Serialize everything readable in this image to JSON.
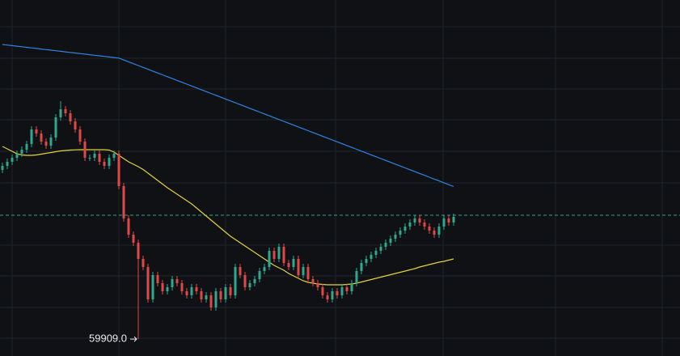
{
  "chart_data": {
    "type": "candlestick",
    "ylim": [
      59700,
      64100
    ],
    "up_color": "#2ea88e",
    "down_color": "#e04848",
    "price_line": 61440,
    "price_line_color": "#2ea88e",
    "low_annotation": "59909.0",
    "open": [
      62000,
      62050,
      62100,
      62150,
      62200,
      62250,
      62320,
      62500,
      62450,
      62350,
      62300,
      62400,
      62650,
      62750,
      62700,
      62600,
      62500,
      62350,
      62150,
      62150,
      62200,
      62100,
      62050,
      62150,
      62200,
      61800,
      61400,
      61200,
      61100,
      60900,
      60800,
      60400,
      60700,
      60600,
      60500,
      60550,
      60650,
      60600,
      60500,
      60450,
      60550,
      60500,
      60400,
      60450,
      60300,
      60500,
      60400,
      60550,
      60450,
      60800,
      60700,
      60550,
      60600,
      60650,
      60750,
      60800,
      61000,
      60900,
      61050,
      60850,
      60800,
      60900,
      60700,
      60800,
      60650,
      60600,
      60550,
      60450,
      60400,
      60500,
      60450,
      60550,
      60500,
      60600,
      60750,
      60850,
      60900,
      60950,
      61000,
      61050,
      61100,
      61150,
      61200,
      61250,
      61300,
      61350,
      61400,
      61350,
      61300,
      61250,
      61200,
      61300,
      61400,
      61350
    ],
    "high": [
      62090,
      62140,
      62190,
      62240,
      62290,
      62360,
      62540,
      62540,
      62490,
      62390,
      62440,
      62690,
      62850,
      62790,
      62740,
      62640,
      62540,
      62390,
      62190,
      62240,
      62240,
      62140,
      62190,
      62240,
      62240,
      61840,
      61440,
      61240,
      61140,
      60940,
      60840,
      60740,
      60740,
      60640,
      60590,
      60690,
      60690,
      60640,
      60540,
      60590,
      60590,
      60540,
      60490,
      60490,
      60540,
      60540,
      60590,
      60590,
      60840,
      60840,
      60740,
      60640,
      60690,
      60790,
      60840,
      61040,
      61040,
      61090,
      61090,
      60890,
      60940,
      60940,
      60840,
      60840,
      60690,
      60640,
      60590,
      60490,
      60540,
      60540,
      60590,
      60590,
      60640,
      60790,
      60890,
      60940,
      60990,
      61040,
      61090,
      61140,
      61190,
      61240,
      61290,
      61340,
      61390,
      61440,
      61440,
      61390,
      61340,
      61290,
      61340,
      61440,
      61440,
      61460
    ],
    "low": [
      61960,
      62010,
      62060,
      62110,
      62160,
      62210,
      62280,
      62410,
      62310,
      62260,
      62260,
      62360,
      62610,
      62660,
      62560,
      62460,
      62310,
      62110,
      62110,
      62110,
      62060,
      62010,
      62010,
      62110,
      61760,
      61360,
      61160,
      61060,
      59909,
      60760,
      60360,
      60360,
      60560,
      60460,
      60460,
      60510,
      60560,
      60460,
      60410,
      60410,
      60460,
      60360,
      60360,
      60260,
      60260,
      60360,
      60360,
      60410,
      60410,
      60660,
      60510,
      60510,
      60560,
      60610,
      60710,
      60760,
      60860,
      60860,
      60810,
      60760,
      60760,
      60660,
      60660,
      60610,
      60560,
      60510,
      60410,
      60360,
      60360,
      60410,
      60410,
      60460,
      60460,
      60560,
      60710,
      60810,
      60860,
      60910,
      60960,
      61010,
      61060,
      61110,
      61160,
      61210,
      61260,
      61310,
      61310,
      61260,
      61210,
      61160,
      61160,
      61260,
      61310,
      61310
    ],
    "close": [
      62050,
      62100,
      62150,
      62200,
      62250,
      62320,
      62500,
      62450,
      62350,
      62300,
      62400,
      62650,
      62750,
      62700,
      62600,
      62500,
      62350,
      62150,
      62150,
      62200,
      62100,
      62050,
      62150,
      62200,
      61800,
      61400,
      61200,
      61100,
      60900,
      60800,
      60400,
      60700,
      60600,
      60500,
      60550,
      60650,
      60600,
      60500,
      60450,
      60550,
      60500,
      60400,
      60450,
      60300,
      60500,
      60400,
      60550,
      60450,
      60800,
      60700,
      60550,
      60600,
      60650,
      60750,
      60800,
      61000,
      60900,
      61050,
      60850,
      60800,
      60900,
      60700,
      60800,
      60650,
      60600,
      60550,
      60450,
      60400,
      60500,
      60450,
      60550,
      60500,
      60600,
      60750,
      60850,
      60900,
      60950,
      61000,
      61050,
      61100,
      61150,
      61200,
      61250,
      61300,
      61350,
      61400,
      61350,
      61300,
      61250,
      61200,
      61300,
      61400,
      61350,
      61420
    ],
    "series": [
      {
        "color": "#2d84e6",
        "values": [
          63550,
          63543,
          63536,
          63529,
          63522,
          63515,
          63508,
          63501,
          63494,
          63487,
          63480,
          63473,
          63466,
          63459,
          63452,
          63445,
          63438,
          63431,
          63424,
          63417,
          63410,
          63403,
          63396,
          63389,
          63382,
          63359,
          63336,
          63313,
          63290,
          63267,
          63244,
          63221,
          63198,
          63175,
          63152,
          63129,
          63106,
          63083,
          63060,
          63037,
          63014,
          62991,
          62968,
          62945,
          62922,
          62899,
          62876,
          62853,
          62830,
          62807,
          62784,
          62761,
          62738,
          62715,
          62692,
          62669,
          62646,
          62623,
          62600,
          62577,
          62554,
          62531,
          62508,
          62485,
          62462,
          62439,
          62416,
          62393,
          62370,
          62347,
          62324,
          62301,
          62278,
          62255,
          62232,
          62209,
          62186,
          62163,
          62140,
          62117,
          62094,
          62071,
          62048,
          62025,
          62002,
          61979,
          61956,
          61933,
          61910,
          61887,
          61864,
          61841,
          61818,
          61795
        ]
      },
      {
        "color": "#e3d23c",
        "values": [
          62290,
          62260,
          62230,
          62200,
          62185,
          62180,
          62180,
          62185,
          62195,
          62205,
          62215,
          62225,
          62235,
          62240,
          62245,
          62248,
          62250,
          62250,
          62250,
          62250,
          62250,
          62250,
          62245,
          62220,
          62180,
          62140,
          62100,
          62070,
          62040,
          62005,
          61960,
          61915,
          61870,
          61825,
          61780,
          61740,
          61700,
          61660,
          61620,
          61580,
          61530,
          61480,
          61430,
          61380,
          61330,
          61280,
          61230,
          61180,
          61140,
          61100,
          61060,
          61020,
          60980,
          60940,
          60900,
          60860,
          60820,
          60790,
          60760,
          60720,
          60690,
          60660,
          60630,
          60610,
          60600,
          60590,
          60585,
          60580,
          60580,
          60580,
          60580,
          60585,
          60590,
          60600,
          60615,
          60630,
          60645,
          60660,
          60675,
          60690,
          60705,
          60720,
          60735,
          60750,
          60765,
          60780,
          60800,
          60815,
          60830,
          60845,
          60860,
          60870,
          60885,
          60900
        ]
      }
    ]
  }
}
